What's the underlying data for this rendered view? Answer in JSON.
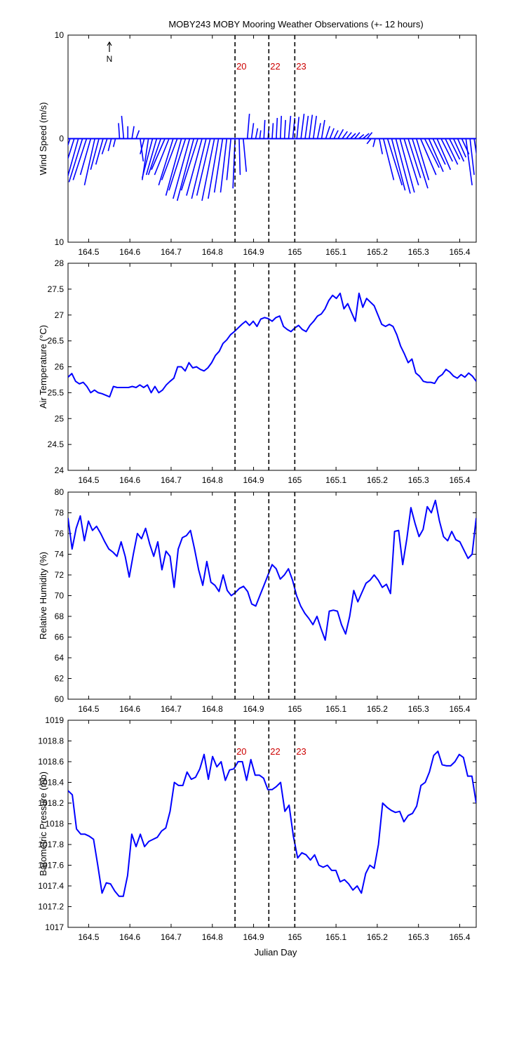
{
  "title": "MOBY243 MOBY Mooring Weather Observations (+- 12 hours)",
  "north_label": "N",
  "xlabel": "Julian Day",
  "xlim": [
    164.45,
    165.44
  ],
  "x_ticks": [
    "164.5",
    "164.6",
    "164.7",
    "164.8",
    "164.9",
    "165",
    "165.1",
    "165.2",
    "165.3",
    "165.4"
  ],
  "x_tick_values": [
    164.5,
    164.6,
    164.7,
    164.8,
    164.9,
    165.0,
    165.1,
    165.2,
    165.3,
    165.4
  ],
  "line_color": "#0000ff",
  "marker_color": "#cc0000",
  "markers": [
    {
      "label": "20",
      "x": 164.855
    },
    {
      "label": "22",
      "x": 164.937
    },
    {
      "label": "23",
      "x": 165.0
    }
  ],
  "chart_data": [
    {
      "type": "vector",
      "ylabel": "Wind Speed (m/s)",
      "ylim": [
        -10,
        10
      ],
      "y_ticks": [
        "10",
        "0",
        "10"
      ],
      "y_tick_values": [
        10,
        0,
        -10
      ],
      "show_markers": true,
      "u": [
        -1.5,
        -1.2,
        -1.4,
        -1.3,
        -1.3,
        -1.0,
        -1.0,
        -0.8,
        -0.7,
        -0.5,
        -0.3,
        -0.2,
        -0.1,
        -0.2,
        0.0,
        0.2,
        0.3,
        0.3,
        -0.4,
        -0.6,
        -1.0,
        -1.0,
        -1.2,
        -1.3,
        -1.4,
        -1.4,
        -1.5,
        -1.5,
        -1.6,
        -1.6,
        -1.6,
        -1.6,
        -1.5,
        -1.4,
        -1.3,
        -1.2,
        -1.0,
        -0.8,
        -0.6,
        -0.4,
        -0.2,
        0.1,
        0.3,
        0.2,
        0.2,
        0.2,
        0.1,
        0.1,
        0.1,
        0.1,
        0.1,
        0.1,
        0.1,
        0.2,
        0.2,
        0.2,
        0.3,
        0.3,
        0.3,
        0.3,
        0.3,
        0.3,
        0.4,
        0.4,
        0.4,
        0.5,
        0.5,
        0.5,
        0.5,
        0.5,
        0.5,
        0.6,
        0.5,
        -0.4,
        -0.2,
        0.3,
        1.0,
        1.4,
        1.3,
        1.4,
        1.4,
        1.4,
        1.2,
        1.5,
        1.2,
        1.5,
        1.4,
        1.4,
        1.2,
        1.3,
        1.1,
        1.2,
        1.0,
        1.0,
        0.8,
        0.7,
        0.6,
        0.4,
        0.3
      ],
      "v": [
        -4.5,
        -3.8,
        -5.0,
        -4.2,
        -4.0,
        -3.5,
        -4.5,
        -3.0,
        -2.5,
        -1.5,
        -1.2,
        -0.8,
        1.5,
        2.2,
        1.2,
        1.2,
        0.8,
        -2.2,
        -1.5,
        -4.0,
        -3.8,
        -3.5,
        -3.5,
        -3.0,
        -3.5,
        -4.5,
        -4.0,
        -5.5,
        -5.0,
        -5.8,
        -6.0,
        -5.0,
        -5.5,
        -5.8,
        -5.5,
        -6.0,
        -5.8,
        -5.2,
        -5.2,
        -4.0,
        -4.8,
        -3.5,
        -3.2,
        2.4,
        1.5,
        1.0,
        0.8,
        1.8,
        1.2,
        1.5,
        2.0,
        2.2,
        1.8,
        2.2,
        2.0,
        2.1,
        2.4,
        2.2,
        2.3,
        2.2,
        1.5,
        1.8,
        1.2,
        1.0,
        0.8,
        0.9,
        0.7,
        0.6,
        0.5,
        0.6,
        0.4,
        0.5,
        0.6,
        -0.5,
        -0.8,
        -1.5,
        -4.0,
        -4.5,
        -5.0,
        -5.3,
        -5.2,
        -4.5,
        -3.8,
        -4.8,
        -4.0,
        -3.5,
        -2.8,
        -3.2,
        -2.5,
        -3.0,
        -2.2,
        -2.5,
        -2.0,
        -2.2,
        -1.8,
        -1.5,
        -4.5,
        -3.5,
        -2.0
      ]
    },
    {
      "type": "line",
      "ylabel": "Air Temperature (°C)",
      "ylim": [
        24,
        28
      ],
      "y_ticks": [
        "28",
        "27.5",
        "27",
        "26.5",
        "26",
        "25.5",
        "25",
        "24.5",
        "24"
      ],
      "y_tick_values": [
        28,
        27.5,
        27,
        26.5,
        26,
        25.5,
        25,
        24.5,
        24
      ],
      "show_markers": false,
      "values": [
        25.8,
        25.87,
        25.72,
        25.67,
        25.7,
        25.62,
        25.5,
        25.55,
        25.5,
        25.48,
        25.45,
        25.42,
        25.62,
        25.6,
        25.6,
        25.6,
        25.6,
        25.62,
        25.6,
        25.65,
        25.6,
        25.65,
        25.5,
        25.62,
        25.5,
        25.55,
        25.65,
        25.72,
        25.78,
        26.0,
        26.0,
        25.92,
        26.08,
        25.98,
        26.0,
        25.95,
        25.92,
        25.98,
        26.08,
        26.22,
        26.3,
        26.45,
        26.52,
        26.62,
        26.68,
        26.75,
        26.82,
        26.88,
        26.8,
        26.88,
        26.78,
        26.92,
        26.95,
        26.93,
        26.88,
        26.95,
        26.98,
        26.78,
        26.72,
        26.68,
        26.75,
        26.8,
        26.72,
        26.68,
        26.8,
        26.88,
        26.98,
        27.02,
        27.12,
        27.28,
        27.38,
        27.32,
        27.42,
        27.12,
        27.22,
        27.05,
        26.88,
        27.42,
        27.15,
        27.32,
        27.25,
        27.18,
        27.0,
        26.82,
        26.78,
        26.82,
        26.78,
        26.62,
        26.4,
        26.25,
        26.08,
        26.15,
        25.88,
        25.82,
        25.72,
        25.7,
        25.7,
        25.68,
        25.8,
        25.85,
        25.95,
        25.9,
        25.82,
        25.78,
        25.85,
        25.8,
        25.88,
        25.82,
        25.72
      ]
    },
    {
      "type": "line",
      "ylabel": "Relative Humidity (%)",
      "ylim": [
        60,
        80
      ],
      "y_ticks": [
        "80",
        "78",
        "76",
        "74",
        "72",
        "70",
        "68",
        "66",
        "64",
        "62",
        "60"
      ],
      "y_tick_values": [
        80,
        78,
        76,
        74,
        72,
        70,
        68,
        66,
        64,
        62,
        60
      ],
      "show_markers": false,
      "values": [
        77.5,
        74.5,
        76.5,
        77.7,
        75.3,
        77.2,
        76.3,
        76.7,
        76.0,
        75.2,
        74.5,
        74.2,
        73.8,
        75.2,
        73.8,
        71.8,
        74.0,
        76.0,
        75.5,
        76.5,
        75.0,
        73.8,
        75.2,
        72.5,
        74.3,
        73.8,
        70.8,
        74.5,
        75.6,
        75.8,
        76.3,
        74.5,
        72.5,
        71.0,
        73.3,
        71.3,
        71.0,
        70.4,
        72.0,
        70.5,
        70.0,
        70.3,
        70.7,
        70.9,
        70.4,
        69.2,
        69.0,
        70.0,
        71.0,
        72.0,
        73.0,
        72.6,
        71.6,
        72.0,
        72.6,
        71.5,
        70.0,
        69.0,
        68.3,
        67.8,
        67.2,
        68.0,
        66.8,
        65.7,
        68.5,
        68.6,
        68.5,
        67.2,
        66.3,
        68.0,
        70.5,
        69.4,
        70.3,
        71.2,
        71.5,
        72.0,
        71.5,
        70.8,
        71.1,
        70.2,
        76.2,
        76.3,
        73.0,
        75.5,
        78.5,
        77.0,
        75.7,
        76.4,
        78.6,
        78.0,
        79.2,
        77.2,
        75.7,
        75.3,
        76.2,
        75.4,
        75.2,
        74.4,
        73.6,
        74.0,
        77.5
      ]
    },
    {
      "type": "line",
      "ylabel": "Barometric Pressure (mb)",
      "ylim": [
        1017,
        1019
      ],
      "y_ticks": [
        "1019",
        "1018.8",
        "1018.6",
        "1018.4",
        "1018.2",
        "1018",
        "1017.8",
        "1017.6",
        "1017.4",
        "1017.2",
        "1017"
      ],
      "y_tick_values": [
        1019,
        1018.8,
        1018.6,
        1018.4,
        1018.2,
        1018,
        1017.8,
        1017.6,
        1017.4,
        1017.2,
        1017
      ],
      "show_markers": true,
      "values": [
        1018.32,
        1018.28,
        1017.95,
        1017.9,
        1017.9,
        1017.88,
        1017.85,
        1017.6,
        1017.33,
        1017.43,
        1017.42,
        1017.35,
        1017.3,
        1017.3,
        1017.5,
        1017.9,
        1017.78,
        1017.9,
        1017.78,
        1017.83,
        1017.85,
        1017.87,
        1017.93,
        1017.96,
        1018.12,
        1018.4,
        1018.37,
        1018.37,
        1018.5,
        1018.43,
        1018.45,
        1018.53,
        1018.67,
        1018.43,
        1018.65,
        1018.55,
        1018.6,
        1018.42,
        1018.52,
        1018.53,
        1018.6,
        1018.6,
        1018.42,
        1018.62,
        1018.47,
        1018.47,
        1018.44,
        1018.33,
        1018.33,
        1018.36,
        1018.4,
        1018.12,
        1018.18,
        1017.88,
        1017.67,
        1017.72,
        1017.7,
        1017.65,
        1017.7,
        1017.6,
        1017.58,
        1017.6,
        1017.55,
        1017.55,
        1017.44,
        1017.46,
        1017.42,
        1017.36,
        1017.4,
        1017.33,
        1017.52,
        1017.6,
        1017.57,
        1017.8,
        1018.2,
        1018.16,
        1018.13,
        1018.11,
        1018.12,
        1018.02,
        1018.08,
        1018.1,
        1018.17,
        1018.37,
        1018.4,
        1018.5,
        1018.66,
        1018.7,
        1018.57,
        1018.56,
        1018.56,
        1018.6,
        1018.67,
        1018.64,
        1018.46,
        1018.46,
        1018.2
      ]
    }
  ]
}
